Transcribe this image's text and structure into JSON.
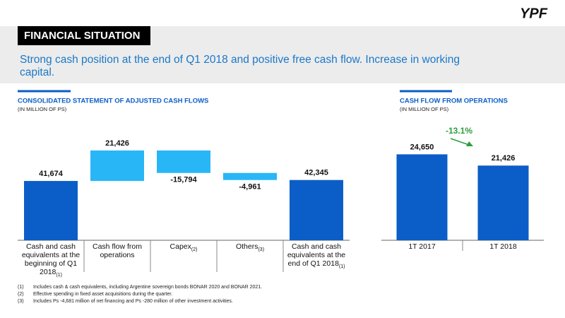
{
  "header": {
    "logo": "YPF",
    "section": "FINANCIAL SITUATION",
    "subtitle": "Strong cash position at the end of Q1 2018 and positive free cash flow. Increase in working capital."
  },
  "chart_data": [
    {
      "type": "waterfall",
      "title": "CONSOLIDATED STATEMENT OF ADJUSTED CASH FLOWS",
      "subtitle": "(IN MILLION OF PS)",
      "categories": [
        "Cash and cash equivalents at the beginning of Q1 2018",
        "Cash flow from operations",
        "Capex",
        "Others",
        "Cash and cash equivalents at the end of Q1 2018"
      ],
      "category_notes": [
        "(1)",
        null,
        "(2)",
        "(3)",
        "(1)"
      ],
      "values": [
        41674,
        21426,
        -15794,
        -4961,
        42345
      ],
      "value_labels": [
        "41,674",
        "21,426",
        "-15,794",
        "-4,961",
        "42,345"
      ],
      "totals": [
        true,
        false,
        false,
        false,
        true
      ],
      "colors": [
        "#0b5ec7",
        "#29b6f6",
        "#29b6f6",
        "#29b6f6",
        "#0b5ec7"
      ],
      "ylim": [
        0,
        72000
      ]
    },
    {
      "type": "bar",
      "title": "CASH FLOW FROM OPERATIONS",
      "subtitle": "(IN MILLION OF PS)",
      "categories": [
        "1T 2017",
        "1T 2018"
      ],
      "values": [
        24650,
        21426
      ],
      "value_labels": [
        "24,650",
        "21,426"
      ],
      "color": "#0b5ec7",
      "ylim": [
        0,
        30000
      ],
      "annotation": "-13.1%",
      "annotation_color": "#2e9e3e"
    }
  ],
  "footnotes": [
    {
      "marker": "(1)",
      "text": "Includes cash & cash equivalents, including Argentine sovereign bonds BONAR 2020 and BONAR 2021."
    },
    {
      "marker": "(2)",
      "text": "Effective spending in fixed asset acquisitions during the quarter."
    },
    {
      "marker": "(3)",
      "text": "Includes Ps -4,681 million of net financing and Ps -280 million of other investment activities."
    }
  ]
}
